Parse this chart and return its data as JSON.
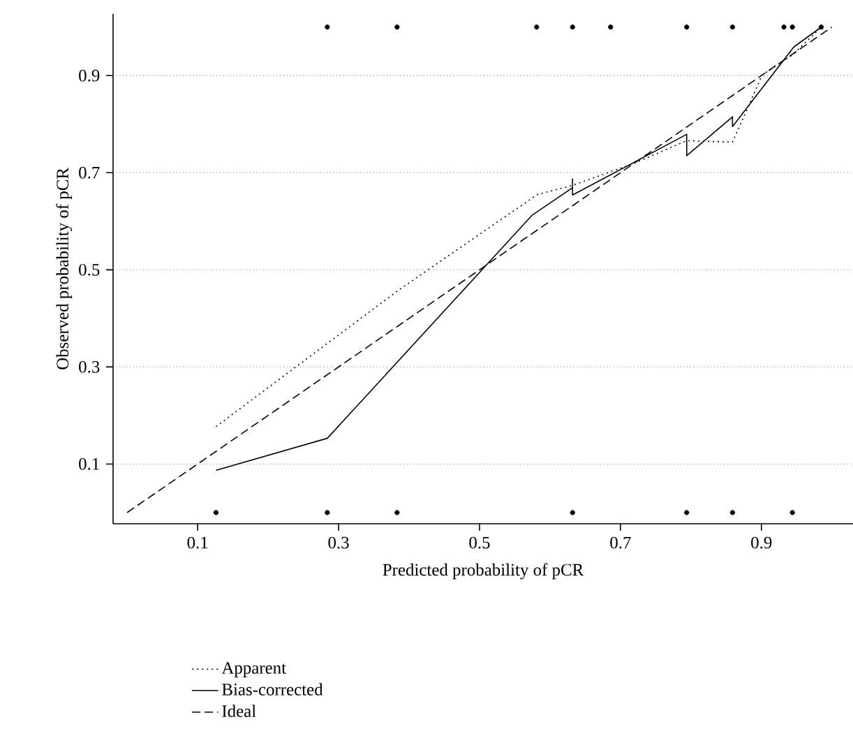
{
  "chart_data": {
    "type": "line",
    "xlabel": "Predicted probability of pCR",
    "ylabel": "Observed probability of pCR",
    "xlim": [
      -0.02,
      1.03
    ],
    "ylim": [
      -0.023,
      1.027
    ],
    "xticks": [
      0.1,
      0.3,
      0.5,
      0.7,
      0.9
    ],
    "yticks": [
      0.1,
      0.3,
      0.5,
      0.7,
      0.9
    ],
    "grid": "y",
    "legend": "bottom",
    "series": [
      {
        "name": "Apparent",
        "line_style": "dotted",
        "marker": "none",
        "color": "#000000",
        "x": [
          0.126,
          0.385,
          0.582,
          0.632,
          0.719,
          0.794,
          0.859,
          0.901,
          0.946,
          0.985
        ],
        "values": [
          0.177,
          0.458,
          0.655,
          0.674,
          0.719,
          0.766,
          0.763,
          0.901,
          0.945,
          1.0
        ]
      },
      {
        "name": "Bias-corrected",
        "line_style": "solid",
        "marker": "none",
        "color": "#000000",
        "x": [
          0.126,
          0.284,
          0.575,
          0.632,
          0.632,
          0.632,
          0.794,
          0.794,
          0.859,
          0.859,
          0.946,
          0.985
        ],
        "values": [
          0.087,
          0.153,
          0.613,
          0.669,
          0.687,
          0.654,
          0.779,
          0.735,
          0.815,
          0.795,
          0.959,
          1.0
        ]
      },
      {
        "name": "Ideal",
        "line_style": "dashed",
        "marker": "none",
        "color": "#000000",
        "x": [
          0,
          1
        ],
        "values": [
          0,
          1
        ]
      },
      {
        "type": "scatter",
        "marker": "circle",
        "color": "#000000",
        "x": [
          0.284,
          0.383,
          0.581,
          0.632,
          0.686,
          0.794,
          0.859,
          0.932,
          0.944,
          0.985
        ],
        "values": [
          1,
          1,
          1,
          1,
          1,
          1,
          1,
          1,
          1,
          1
        ]
      },
      {
        "type": "scatter",
        "marker": "circle",
        "color": "#000000",
        "x": [
          0.126,
          0.284,
          0.383,
          0.632,
          0.794,
          0.859,
          0.944
        ],
        "values": [
          0,
          0,
          0,
          0,
          0,
          0,
          0
        ]
      }
    ]
  }
}
